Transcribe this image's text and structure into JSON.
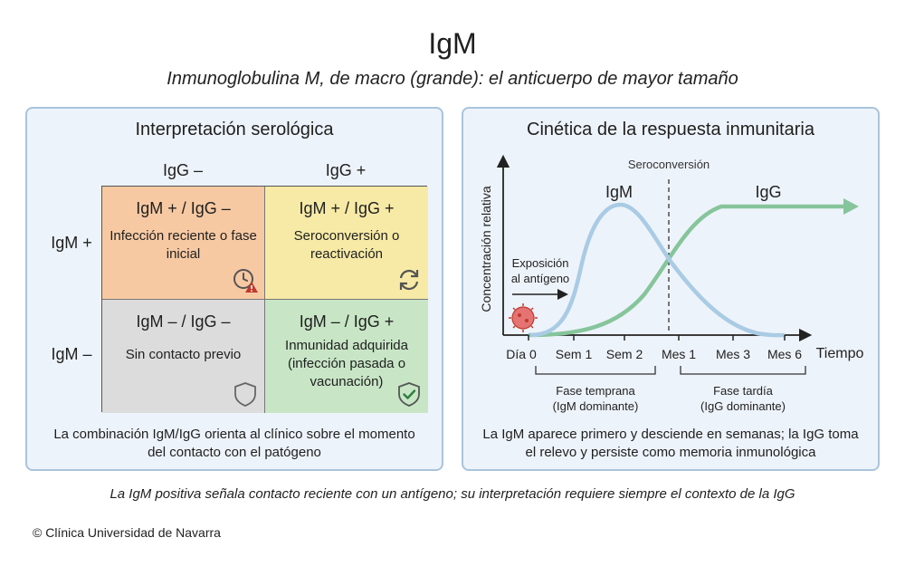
{
  "header": {
    "title": "IgM",
    "subtitle": "Inmunoglobulina M, de macro (grande): el anticuerpo de mayor tamaño"
  },
  "left_panel": {
    "title": "Interpretación serológica",
    "col_headers": [
      "IgG –",
      "IgG +"
    ],
    "row_headers": [
      "IgM +",
      "IgM –"
    ],
    "cells": [
      {
        "title": "IgM + / IgG –",
        "desc": "Infección reciente o fase inicial",
        "icon": "clock-warning-icon",
        "color": "#f7c9a3"
      },
      {
        "title": "IgM + / IgG +",
        "desc": "Seroconversión o reactivación",
        "icon": "refresh-icon",
        "color": "#f7eaa6"
      },
      {
        "title": "IgM – / IgG –",
        "desc": "Sin contacto previo",
        "icon": "shield-icon",
        "color": "#dcdcdc"
      },
      {
        "title": "IgM – / IgG +",
        "desc": "Inmunidad adquirida (infección pasada o vacunación)",
        "icon": "shield-check-icon",
        "color": "#c8e6c6"
      }
    ],
    "caption": "La combinación IgM/IgG orienta al clínico sobre el momento del contacto con el patógeno"
  },
  "right_panel": {
    "title": "Cinética de la respuesta inmunitaria",
    "y_axis_label": "Concentración relativa",
    "x_axis_label": "Tiempo",
    "x_ticks": [
      "Día 0",
      "Sem 1",
      "Sem 2",
      "Mes 1",
      "Mes 3",
      "Mes 6"
    ],
    "seroconversion_label": "Seroconversión",
    "igm_label": "IgM",
    "igg_label": "IgG",
    "exposure_label_1": "Exposición",
    "exposure_label_2": "al antígeno",
    "early_phase_1": "Fase temprana",
    "early_phase_2": "(IgM dominante)",
    "late_phase_1": "Fase tardía",
    "late_phase_2": "(IgG dominante)",
    "igm_color": "#a9cbe4",
    "igg_color": "#86c59b",
    "caption": "La IgM aparece primero y desciende en semanas; la IgG toma el relevo y persiste como memoria inmunológica"
  },
  "footer": {
    "note": "La IgM positiva señala contacto reciente con un antígeno; su interpretación requiere siempre el contexto de la IgG",
    "copyright": "© Clínica Universidad de Navarra"
  }
}
